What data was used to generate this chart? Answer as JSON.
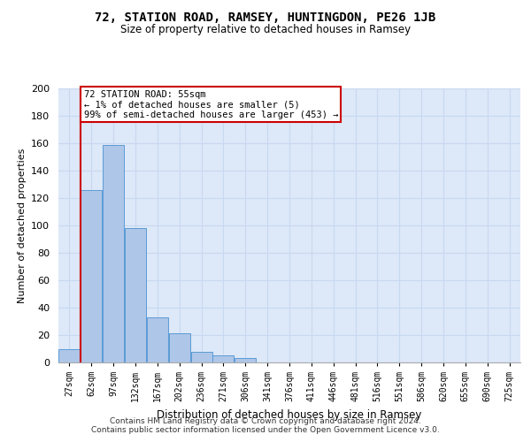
{
  "title1": "72, STATION ROAD, RAMSEY, HUNTINGDON, PE26 1JB",
  "title2": "Size of property relative to detached houses in Ramsey",
  "xlabel": "Distribution of detached houses by size in Ramsey",
  "ylabel": "Number of detached properties",
  "bar_labels": [
    "27sqm",
    "62sqm",
    "97sqm",
    "132sqm",
    "167sqm",
    "202sqm",
    "236sqm",
    "271sqm",
    "306sqm",
    "341sqm",
    "376sqm",
    "411sqm",
    "446sqm",
    "481sqm",
    "516sqm",
    "551sqm",
    "586sqm",
    "620sqm",
    "655sqm",
    "690sqm",
    "725sqm"
  ],
  "bar_values": [
    10,
    126,
    159,
    98,
    33,
    21,
    8,
    5,
    3,
    0,
    0,
    0,
    0,
    0,
    0,
    0,
    0,
    0,
    0,
    0,
    0
  ],
  "bar_color": "#aec6e8",
  "bar_edge_color": "#5b9bd5",
  "annotation_line1": "72 STATION ROAD: 55sqm",
  "annotation_line2": "← 1% of detached houses are smaller (5)",
  "annotation_line3": "99% of semi-detached houses are larger (453) →",
  "annotation_box_color": "#ffffff",
  "annotation_box_edge": "#cc0000",
  "vline_color": "#cc0000",
  "vline_x": 1,
  "ylim": [
    0,
    200
  ],
  "yticks": [
    0,
    20,
    40,
    60,
    80,
    100,
    120,
    140,
    160,
    180,
    200
  ],
  "grid_color": "#c8d8f0",
  "background_color": "#dde8f8",
  "footer1": "Contains HM Land Registry data © Crown copyright and database right 2024.",
  "footer2": "Contains public sector information licensed under the Open Government Licence v3.0."
}
